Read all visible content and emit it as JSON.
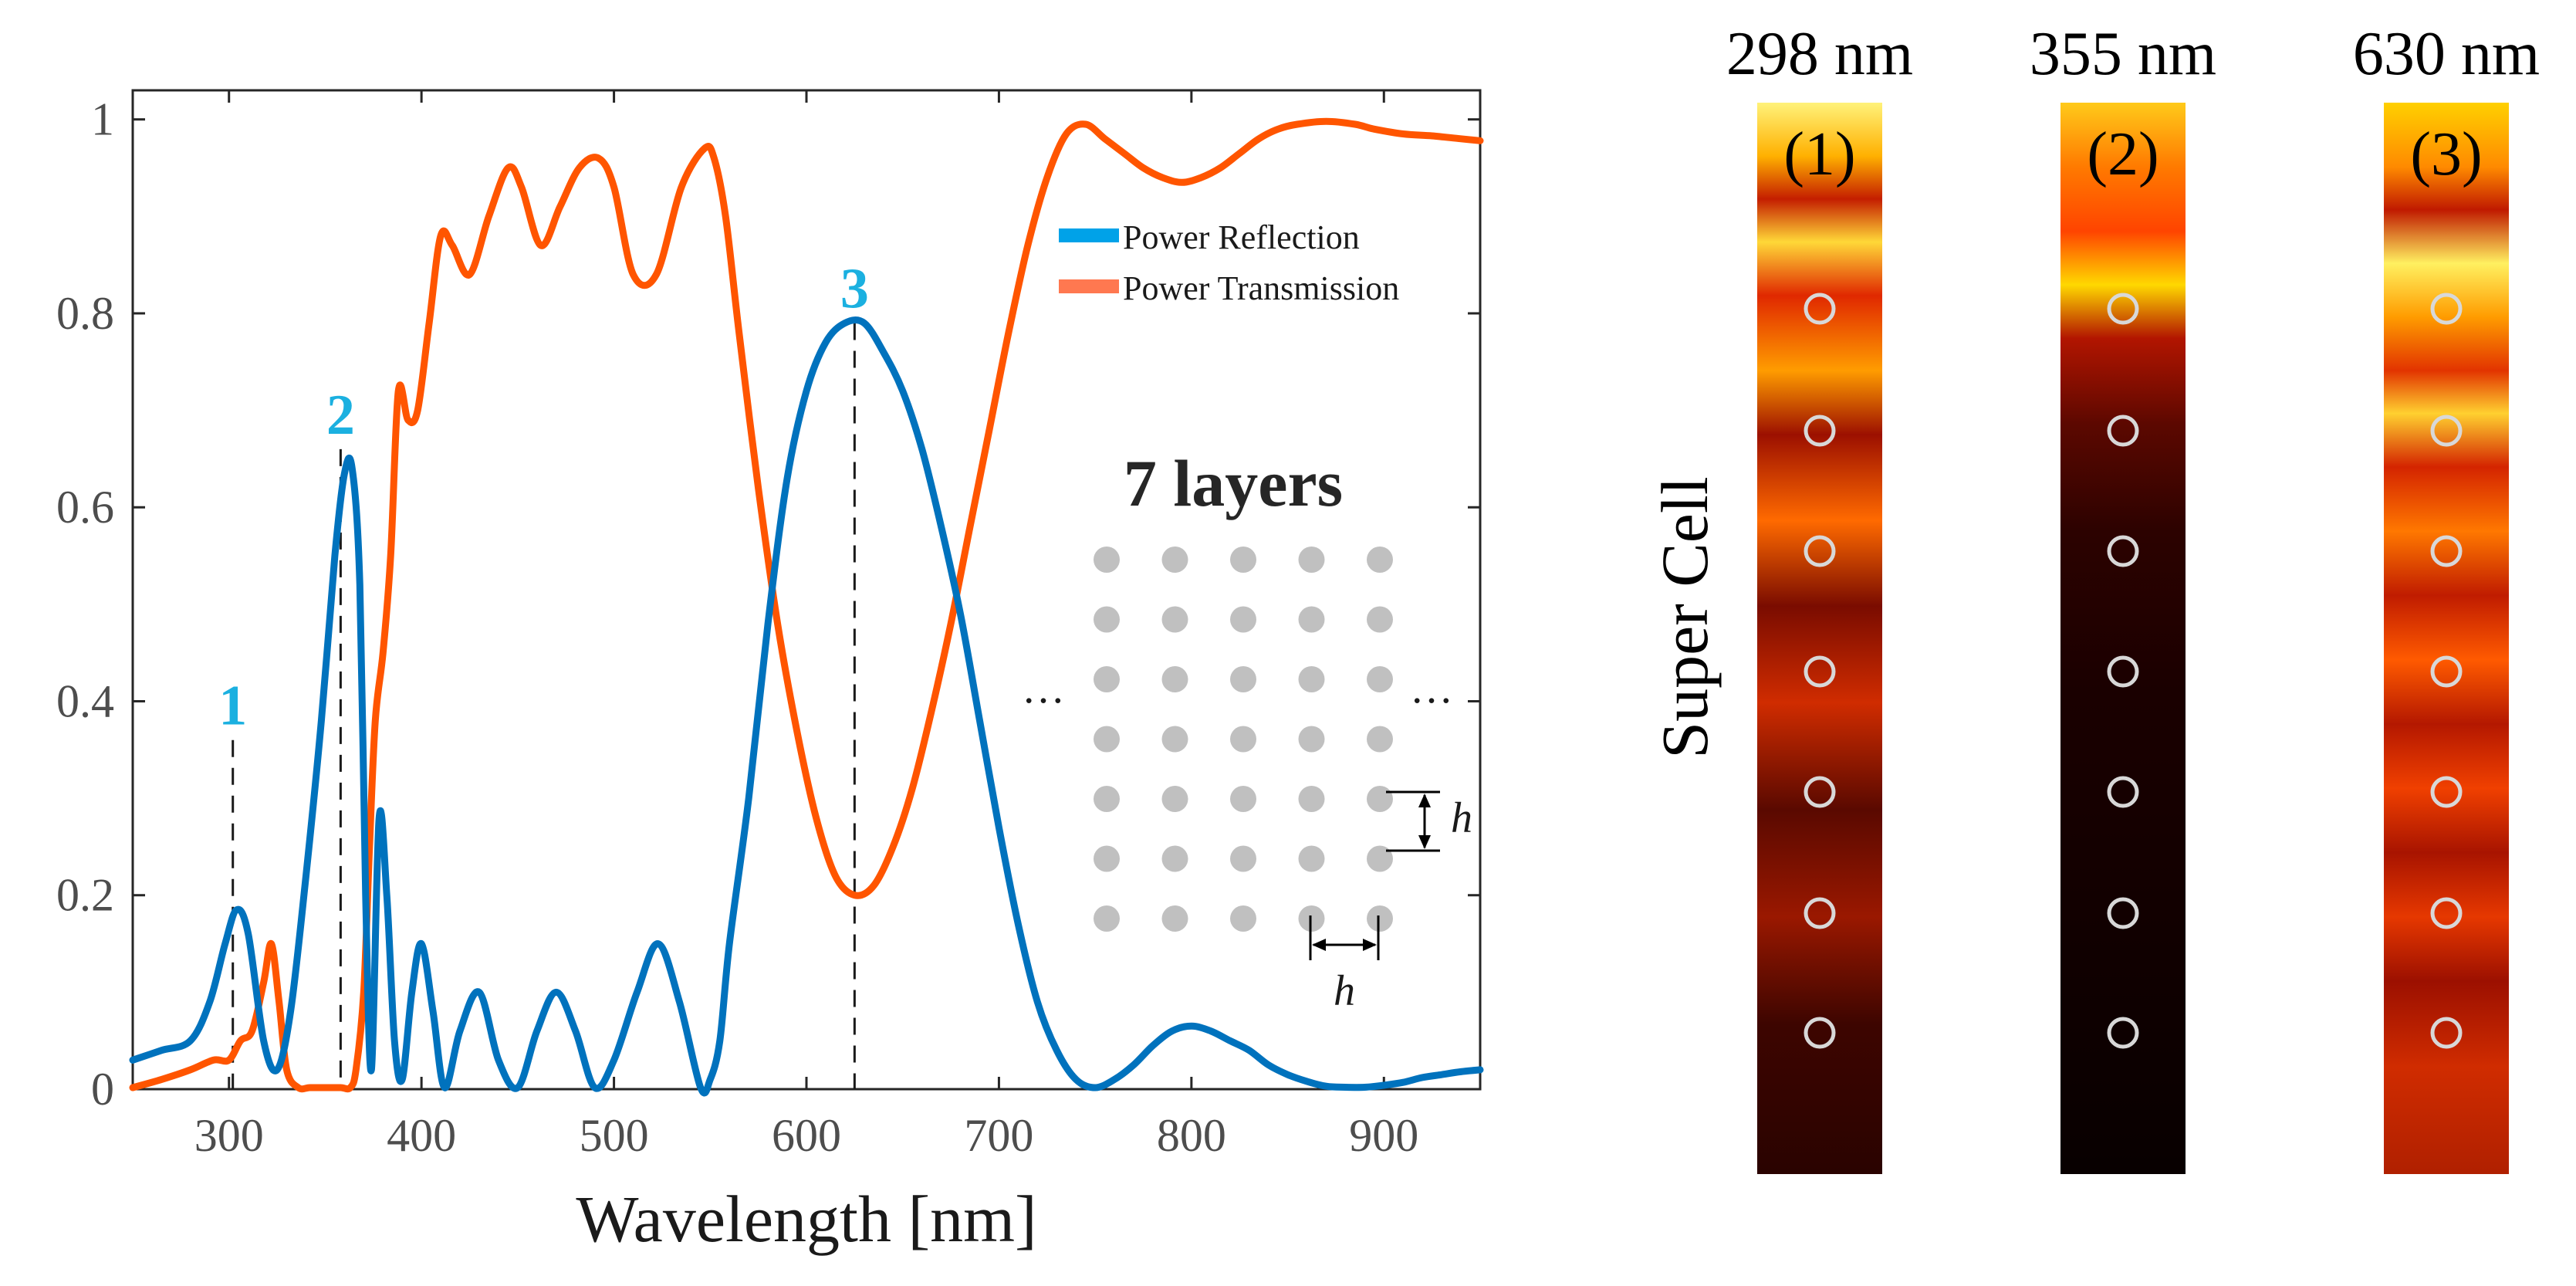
{
  "chart_data": {
    "type": "line",
    "xlabel": "Wavelength [nm]",
    "ylabel": "",
    "xlim": [
      250,
      950
    ],
    "ylim": [
      0,
      1.03
    ],
    "xticks": [
      300,
      400,
      500,
      600,
      700,
      800,
      900
    ],
    "xtick_labels": [
      "300",
      "400",
      "500",
      "600",
      "700",
      "800",
      "900"
    ],
    "yticks": [
      0,
      0.2,
      0.4,
      0.6,
      0.8,
      1
    ],
    "ytick_labels": [
      "0",
      "0.2",
      "0.4",
      "0.6",
      "0.8",
      "1"
    ],
    "grid": false,
    "legend_position": "top-right",
    "series": [
      {
        "name": "Power Reflection",
        "color": "#0072BD",
        "x": [
          250,
          265,
          280,
          290,
          298,
          304,
          310,
          318,
          325,
          332,
          340,
          348,
          355,
          360,
          364,
          368,
          371,
          374,
          378,
          382,
          386,
          390,
          395,
          400,
          406,
          412,
          420,
          430,
          440,
          450,
          460,
          470,
          480,
          490,
          500,
          512,
          523,
          534,
          545,
          550,
          555,
          560,
          570,
          580,
          590,
          600,
          610,
          620,
          630,
          640,
          650,
          660,
          670,
          680,
          690,
          700,
          710,
          720,
          730,
          740,
          750,
          760,
          770,
          780,
          790,
          800,
          810,
          820,
          830,
          840,
          850,
          860,
          870,
          880,
          890,
          900,
          910,
          920,
          930,
          940,
          950
        ],
        "values": [
          0.03,
          0.04,
          0.05,
          0.09,
          0.15,
          0.185,
          0.16,
          0.05,
          0.02,
          0.08,
          0.22,
          0.38,
          0.55,
          0.635,
          0.64,
          0.52,
          0.2,
          0.02,
          0.28,
          0.2,
          0.05,
          0.01,
          0.1,
          0.15,
          0.08,
          0.0,
          0.06,
          0.1,
          0.03,
          0.0,
          0.06,
          0.1,
          0.06,
          0.0,
          0.03,
          0.1,
          0.15,
          0.09,
          0.0,
          0.01,
          0.05,
          0.15,
          0.3,
          0.48,
          0.63,
          0.72,
          0.77,
          0.79,
          0.79,
          0.76,
          0.72,
          0.66,
          0.58,
          0.49,
          0.38,
          0.27,
          0.17,
          0.09,
          0.04,
          0.01,
          0.0,
          0.01,
          0.025,
          0.045,
          0.06,
          0.065,
          0.06,
          0.05,
          0.04,
          0.025,
          0.015,
          0.008,
          0.003,
          0.002,
          0.002,
          0.004,
          0.007,
          0.012,
          0.015,
          0.018,
          0.02
        ]
      },
      {
        "name": "Power Transmission",
        "color": "#FF5500",
        "x": [
          250,
          265,
          280,
          292,
          300,
          306,
          312,
          318,
          322,
          326,
          330,
          336,
          342,
          350,
          358,
          363,
          366,
          370,
          373,
          376,
          380,
          384,
          388,
          393,
          398,
          404,
          410,
          416,
          425,
          435,
          445,
          452,
          462,
          472,
          482,
          492,
          500,
          510,
          522,
          535,
          547,
          552,
          558,
          565,
          575,
          585,
          595,
          605,
          615,
          625,
          635,
          645,
          655,
          665,
          675,
          685,
          695,
          705,
          715,
          725,
          735,
          745,
          755,
          765,
          775,
          785,
          795,
          805,
          815,
          825,
          835,
          845,
          855,
          870,
          885,
          895,
          910,
          925,
          940,
          950
        ],
        "values": [
          0.0,
          0.01,
          0.02,
          0.03,
          0.03,
          0.05,
          0.06,
          0.11,
          0.15,
          0.09,
          0.02,
          0.0,
          0.0,
          0.0,
          0.0,
          0.0,
          0.02,
          0.1,
          0.25,
          0.38,
          0.45,
          0.55,
          0.72,
          0.69,
          0.7,
          0.79,
          0.88,
          0.87,
          0.84,
          0.9,
          0.95,
          0.93,
          0.87,
          0.91,
          0.95,
          0.96,
          0.93,
          0.84,
          0.84,
          0.93,
          0.97,
          0.96,
          0.9,
          0.78,
          0.62,
          0.48,
          0.37,
          0.28,
          0.22,
          0.2,
          0.21,
          0.25,
          0.31,
          0.39,
          0.48,
          0.58,
          0.68,
          0.78,
          0.87,
          0.94,
          0.985,
          0.995,
          0.98,
          0.965,
          0.95,
          0.94,
          0.935,
          0.94,
          0.95,
          0.965,
          0.98,
          0.99,
          0.995,
          0.998,
          0.995,
          0.99,
          0.985,
          0.983,
          0.98,
          0.978
        ]
      }
    ],
    "annotations": [
      {
        "label": "1",
        "x": 302,
        "y_line_top": 0.36,
        "color": "#1BB0E0"
      },
      {
        "label": "2",
        "x": 358,
        "y_line_top": 0.66,
        "color": "#1BB0E0"
      },
      {
        "label": "3",
        "x": 625,
        "y_line_top": 0.79,
        "color": "#1BB0E0"
      }
    ],
    "inset": {
      "title": "7 layers",
      "rows": 7,
      "cols": 5,
      "dot_color": "#C0C0C0",
      "ellipsis": "…",
      "dimension_label": "h"
    }
  },
  "field_panels": [
    {
      "wavelength": "298 nm",
      "index": "(1)"
    },
    {
      "wavelength": "355 nm",
      "index": "(2)"
    },
    {
      "wavelength": "630 nm",
      "index": "(3)"
    }
  ],
  "side_label": "Super Cell"
}
